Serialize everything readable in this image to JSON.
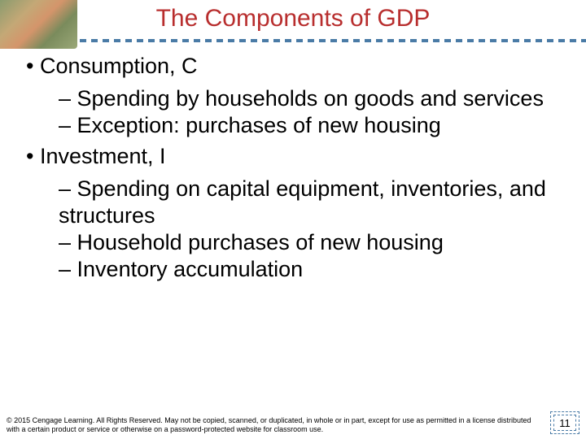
{
  "title": "The Components of GDP",
  "title_color": "#b82e2e",
  "divider_color": "#4a7ba6",
  "sections": [
    {
      "heading": "Consumption, C",
      "items": [
        "Spending by households on goods and services",
        "Exception: purchases of new housing"
      ]
    },
    {
      "heading": "Investment, I",
      "items": [
        "Spending on capital equipment, inventories, and structures",
        "Household purchases of new housing",
        "Inventory accumulation"
      ]
    }
  ],
  "footer": "© 2015 Cengage Learning. All Rights Reserved. May not be copied, scanned, or duplicated, in whole or in part, except for use as permitted in a license distributed with a certain product or service or otherwise on a password-protected website for classroom use.",
  "page_number": "11"
}
